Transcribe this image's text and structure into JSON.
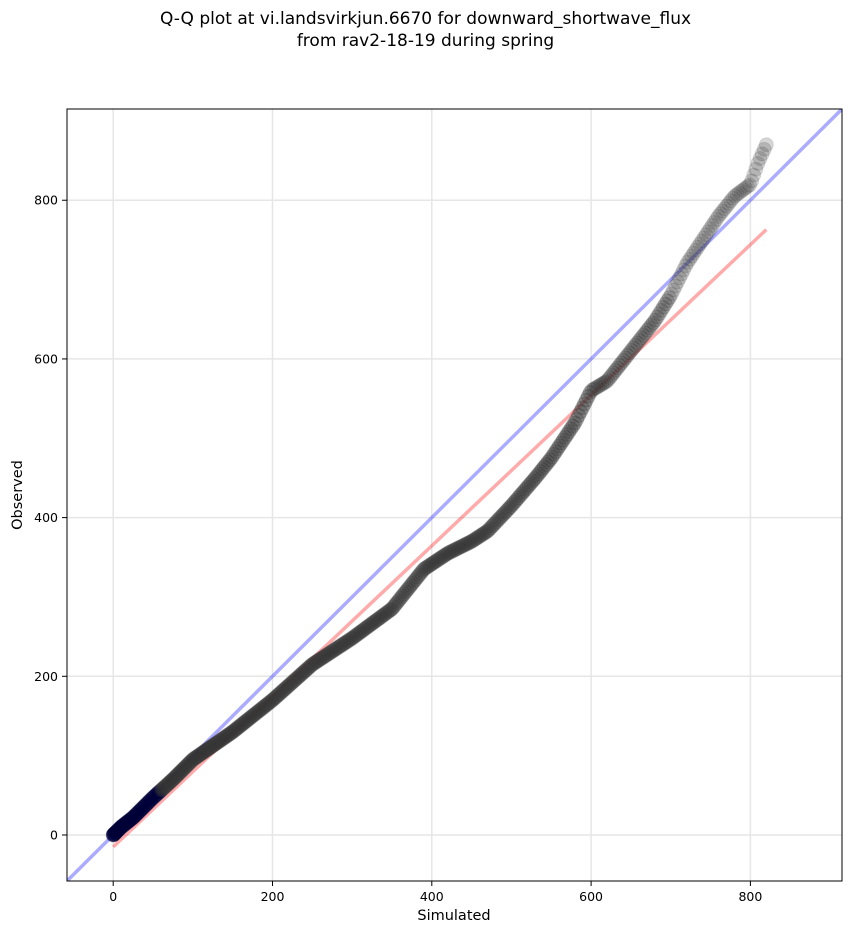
{
  "chart_data": {
    "type": "scatter",
    "title_line1": "Q-Q plot at vi.landsvirkjun.6670 for downward_shortwave_flux",
    "title_line2": "from rav2-18-19 during spring",
    "xlabel": "Simulated",
    "ylabel": "Observed",
    "xlim": [
      -58,
      915
    ],
    "ylim": [
      -58,
      915
    ],
    "xticks": [
      0,
      200,
      400,
      600,
      800
    ],
    "yticks": [
      0,
      200,
      400,
      600,
      800
    ],
    "grid": true,
    "colors": {
      "points": "#333333",
      "low_points": "#00003a",
      "one_to_one_line": "#0000ff",
      "fit_line": "#ff0000"
    },
    "one_to_one_line": {
      "from": [
        -58,
        -58
      ],
      "to": [
        915,
        915
      ]
    },
    "fit_line": {
      "from": [
        0,
        -15
      ],
      "to": [
        820,
        763
      ]
    },
    "quantile_curve": [
      [
        0,
        0
      ],
      [
        10,
        10
      ],
      [
        25,
        22
      ],
      [
        50,
        47
      ],
      [
        75,
        70
      ],
      [
        100,
        95
      ],
      [
        150,
        130
      ],
      [
        200,
        170
      ],
      [
        250,
        215
      ],
      [
        300,
        248
      ],
      [
        350,
        285
      ],
      [
        390,
        335
      ],
      [
        420,
        355
      ],
      [
        450,
        370
      ],
      [
        470,
        383
      ],
      [
        500,
        415
      ],
      [
        530,
        450
      ],
      [
        550,
        475
      ],
      [
        580,
        520
      ],
      [
        600,
        560
      ],
      [
        620,
        572
      ],
      [
        650,
        610
      ],
      [
        680,
        648
      ],
      [
        700,
        680
      ],
      [
        720,
        720
      ],
      [
        740,
        750
      ],
      [
        760,
        780
      ],
      [
        780,
        805
      ],
      [
        800,
        820
      ],
      [
        810,
        848
      ],
      [
        820,
        870
      ]
    ],
    "n_points": 420
  }
}
